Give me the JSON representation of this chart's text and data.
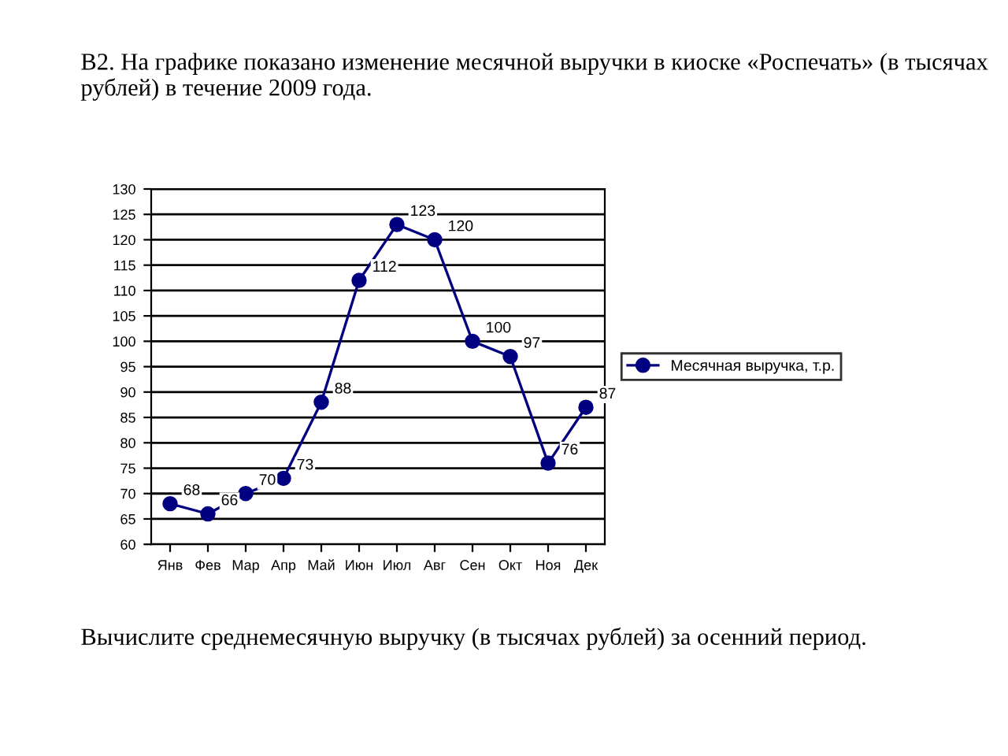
{
  "chart_data": {
    "type": "line",
    "title": "B2. На графике показано изменение месячной выручки в киоске «Роспечать» (в тысячах рублей) в течение 2009 года.",
    "annotations": [
      "Вычислите среднемесячную выручку (в тысячах рублей) за осенний период."
    ],
    "categories": [
      "Янв",
      "Фев",
      "Мар",
      "Апр",
      "Май",
      "Июн",
      "Июл",
      "Авг",
      "Сен",
      "Окт",
      "Ноя",
      "Дек"
    ],
    "series": [
      {
        "name": "Месячная выручка, т.р.",
        "color": "#000080",
        "values": [
          68,
          66,
          70,
          73,
          88,
          112,
          123,
          120,
          100,
          97,
          76,
          87
        ]
      }
    ],
    "ylim": [
      60,
      130
    ],
    "yticks": [
      60,
      65,
      70,
      75,
      80,
      85,
      90,
      95,
      100,
      105,
      110,
      115,
      120,
      125,
      130
    ],
    "grid": "y",
    "legend": "right",
    "marker": "circle",
    "line_style": "solid",
    "data_labels": true
  }
}
